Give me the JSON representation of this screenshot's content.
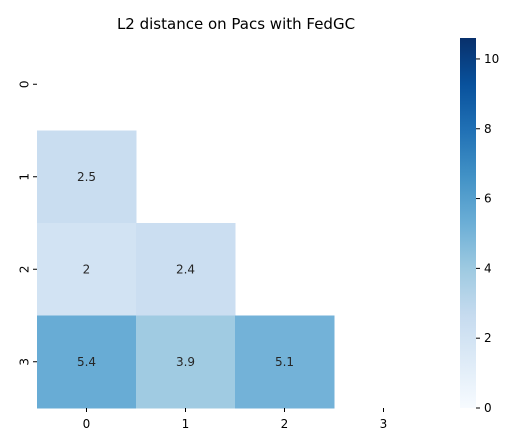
{
  "chart_data": {
    "type": "heatmap",
    "title": "L2 distance on Pacs with FedGC",
    "xlabel": "",
    "ylabel": "",
    "x_categories": [
      "0",
      "1",
      "2",
      "3"
    ],
    "y_categories": [
      "0",
      "1",
      "2",
      "3"
    ],
    "mask": "upper triangle including diagonal",
    "cells": [
      {
        "row": 1,
        "col": 0,
        "value": 2.5,
        "label": "2.5"
      },
      {
        "row": 2,
        "col": 0,
        "value": 2.0,
        "label": "2"
      },
      {
        "row": 2,
        "col": 1,
        "value": 2.4,
        "label": "2.4"
      },
      {
        "row": 3,
        "col": 0,
        "value": 5.4,
        "label": "5.4"
      },
      {
        "row": 3,
        "col": 1,
        "value": 3.9,
        "label": "3.9"
      },
      {
        "row": 3,
        "col": 2,
        "value": 5.1,
        "label": "5.1"
      }
    ],
    "colorbar": {
      "cmap": "Blues",
      "vmin": 0,
      "vmax": 10.6,
      "ticks": [
        "0",
        "2",
        "4",
        "6",
        "8",
        "10"
      ]
    },
    "grid": false
  }
}
